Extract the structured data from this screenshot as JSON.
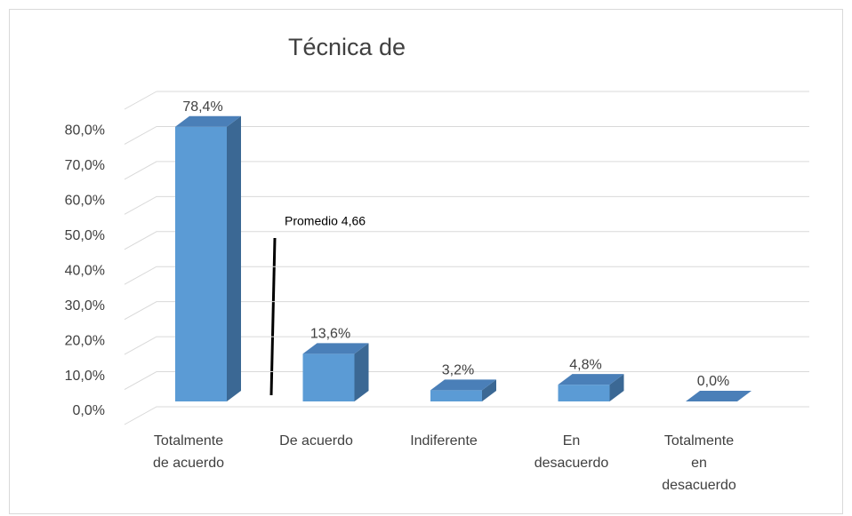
{
  "chart_data": {
    "type": "bar3d",
    "title": "Técnica de",
    "categories": [
      "Totalmente de acuerdo",
      "De acuerdo",
      "Indiferente",
      "En desacuerdo",
      "Totalmente en desacuerdo"
    ],
    "values": [
      78.4,
      13.6,
      3.2,
      4.8,
      0.0
    ],
    "value_labels": [
      "78,4%",
      "13,6%",
      "3,2%",
      "4,8%",
      "0,0%"
    ],
    "color": "#5b9bd5",
    "ylim": [
      0,
      90
    ],
    "yticks": [
      {
        "value": 0,
        "label": "0,0%"
      },
      {
        "value": 10,
        "label": "10,0%"
      },
      {
        "value": 20,
        "label": "20,0%"
      },
      {
        "value": 30,
        "label": "30,0%"
      },
      {
        "value": 40,
        "label": "40,0%"
      },
      {
        "value": 50,
        "label": "50,0%"
      },
      {
        "value": 60,
        "label": "60,0%"
      },
      {
        "value": 70,
        "label": "70,0%"
      },
      {
        "value": 80,
        "label": "80,0%"
      }
    ],
    "grid": true,
    "annotation": "Promedio 4,66"
  }
}
